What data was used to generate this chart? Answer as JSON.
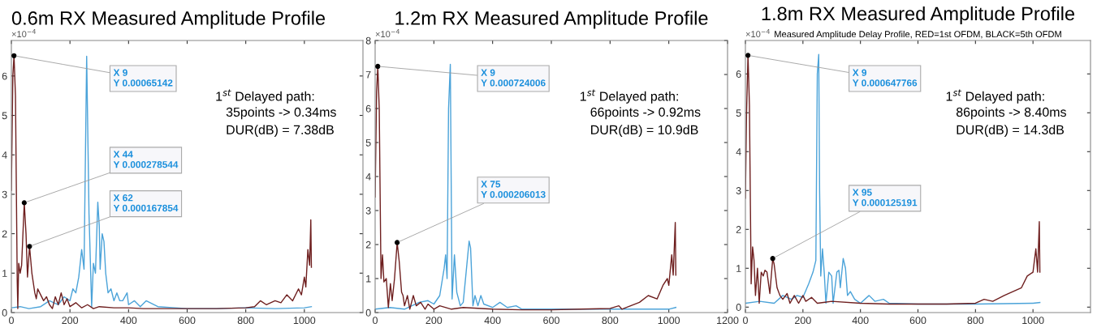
{
  "chart_data": [
    {
      "type": "line",
      "title": "0.6m RX Measured Amplitude Profile",
      "series": [
        {
          "color": "#4ba3d9",
          "x": [
            0,
            30,
            60,
            100,
            130,
            160,
            180,
            200,
            210,
            220,
            230,
            240,
            248,
            257,
            265,
            274,
            280,
            287,
            295,
            300,
            303,
            310,
            316,
            322,
            330,
            340,
            350,
            360,
            370,
            380,
            395,
            400,
            420,
            440,
            460,
            500,
            600,
            700,
            800,
            900,
            1000,
            1024
          ],
          "values": [
            0.12,
            0.15,
            0.1,
            0.15,
            0.3,
            0.2,
            0.4,
            0.3,
            0.6,
            0.5,
            0.9,
            1.6,
            1.1,
            6.5,
            2.5,
            0.15,
            1.25,
            1.0,
            2.8,
            2.2,
            1.1,
            2.0,
            1.8,
            1.0,
            0.5,
            0.6,
            0.3,
            0.5,
            0.3,
            0.3,
            0.5,
            0.2,
            0.3,
            0.15,
            0.3,
            0.15,
            0.1,
            0.1,
            0.12,
            0.1,
            0.12,
            0.15
          ]
        },
        {
          "color": "#6e1f1f",
          "x": [
            0,
            5,
            9,
            14,
            20,
            22,
            25,
            30,
            35,
            44,
            50,
            55,
            62,
            70,
            80,
            85,
            90,
            100,
            110,
            120,
            130,
            140,
            150,
            160,
            170,
            180,
            190,
            200,
            220,
            240,
            260,
            280,
            300,
            350,
            400,
            450,
            500,
            600,
            700,
            800,
            830,
            850,
            870,
            900,
            920,
            940,
            960,
            980,
            990,
            1000,
            1005,
            1012,
            1018,
            1022,
            1024
          ],
          "values": [
            3.1,
            6.0,
            6.5142,
            5.5,
            0.8,
            0.1,
            1.25,
            1.0,
            1.2,
            2.78544,
            2.0,
            0.9,
            1.67854,
            1.0,
            0.5,
            0.35,
            0.6,
            0.45,
            0.3,
            0.4,
            0.2,
            0.1,
            0.4,
            0.2,
            0.5,
            0.2,
            0.35,
            0.15,
            0.25,
            0.12,
            0.2,
            0.1,
            0.15,
            0.12,
            0.12,
            0.1,
            0.1,
            0.1,
            0.1,
            0.12,
            0.15,
            0.3,
            0.2,
            0.3,
            0.25,
            0.45,
            0.3,
            0.6,
            0.45,
            0.9,
            0.65,
            1.6,
            1.2,
            2.35,
            1.15
          ]
        }
      ],
      "xlim": [
        0,
        1200
      ],
      "xticks": [
        0,
        200,
        400,
        600,
        800,
        1000
      ],
      "ylim": [
        0,
        6.9
      ],
      "yticks": [
        0,
        1,
        2,
        3,
        4,
        5,
        6
      ],
      "marker": "none",
      "line_style": "solid",
      "annotations": [
        "×10$^{−4}$",
        "1$^{st}$ Delayed path:",
        "35points -> 0.34ms",
        "DUR(dB) = 7.38dB",
        {
          "text": "X 9\nY 0.00065142",
          "x": 9,
          "y": 6.5142
        },
        {
          "text": "X 44\nY 0.000278544",
          "x": 44,
          "y": 2.78544
        },
        {
          "text": "X 62\nY 0.000167854",
          "x": 62,
          "y": 1.67854
        }
      ]
    },
    {
      "type": "line",
      "title": "1.2m RX Measured Amplitude Profile",
      "series": [
        {
          "color": "#4ba3d9",
          "x": [
            0,
            50,
            100,
            150,
            180,
            200,
            220,
            235,
            240,
            245,
            250,
            256,
            262,
            270,
            278,
            290,
            300,
            310,
            320,
            325,
            333,
            340,
            350,
            360,
            370,
            400,
            425,
            450,
            480,
            500,
            600,
            800,
            1000,
            1024
          ],
          "values": [
            0.1,
            0.15,
            0.1,
            0.3,
            0.35,
            0.25,
            0.5,
            1.3,
            1.7,
            1.0,
            6.0,
            7.3,
            0.4,
            1.7,
            0.6,
            0.2,
            0.3,
            1.2,
            2.1,
            1.9,
            0.2,
            0.5,
            0.2,
            0.5,
            0.25,
            0.15,
            0.3,
            0.15,
            0.2,
            0.1,
            0.1,
            0.1,
            0.1,
            0.15
          ]
        },
        {
          "color": "#6e1f1f",
          "x": [
            0,
            5,
            9,
            14,
            20,
            25,
            30,
            38,
            45,
            52,
            58,
            66,
            75,
            82,
            90,
            95,
            100,
            110,
            118,
            130,
            140,
            155,
            170,
            180,
            200,
            220,
            260,
            300,
            400,
            500,
            600,
            700,
            800,
            830,
            840,
            870,
            900,
            930,
            960,
            980,
            995,
            1000,
            1010,
            1015,
            1022,
            1024
          ],
          "values": [
            3.4,
            6.5,
            7.24006,
            6.0,
            1.0,
            1.7,
            0.9,
            1.0,
            0.15,
            0.85,
            0.35,
            1.0,
            2.06013,
            1.5,
            0.6,
            0.5,
            0.2,
            0.5,
            0.1,
            0.5,
            0.2,
            0.3,
            0.1,
            0.25,
            0.1,
            0.2,
            0.1,
            0.15,
            0.1,
            0.08,
            0.08,
            0.1,
            0.12,
            0.2,
            0.1,
            0.2,
            0.3,
            0.5,
            0.4,
            0.8,
            1.0,
            0.8,
            1.7,
            1.1,
            2.65,
            1.1
          ]
        }
      ],
      "xlim": [
        0,
        1200
      ],
      "xticks": [
        0,
        200,
        400,
        600,
        800,
        1000,
        1200
      ],
      "ylim": [
        0,
        8
      ],
      "yticks": [
        0,
        1,
        2,
        3,
        4,
        5,
        6,
        7,
        8
      ],
      "marker": "none",
      "line_style": "solid",
      "annotations": [
        "×10$^{−4}$",
        "1$^{st}$ Delayed path:",
        "66points -> 0.92ms",
        "DUR(dB) = 10.9dB",
        {
          "text": "X 9\nY 0.000724006",
          "x": 9,
          "y": 7.24006
        },
        {
          "text": "X 75\nY 0.000206013",
          "x": 75,
          "y": 2.06013
        }
      ]
    },
    {
      "type": "line",
      "title": "1.8m RX Measured Amplitude Profile",
      "subtitle": "Measured Amplitude Delay Profile, RED=1st OFDM, BLACK=5th OFDM",
      "series": [
        {
          "color": "#4ba3d9",
          "x": [
            0,
            50,
            100,
            130,
            160,
            180,
            200,
            220,
            235,
            245,
            250,
            255,
            258,
            262,
            268,
            274,
            280,
            290,
            300,
            305,
            318,
            325,
            330,
            340,
            348,
            355,
            365,
            380,
            400,
            430,
            450,
            480,
            500,
            600,
            800,
            1000,
            1024
          ],
          "values": [
            0.1,
            0.15,
            0.1,
            0.3,
            0.2,
            0.3,
            0.25,
            0.6,
            0.9,
            1.2,
            6.0,
            6.5,
            3.0,
            0.8,
            1.5,
            0.9,
            0.1,
            0.9,
            0.8,
            0.1,
            0.9,
            0.95,
            0.5,
            1.25,
            1.0,
            0.3,
            0.4,
            0.2,
            0.1,
            0.3,
            0.15,
            0.2,
            0.1,
            0.08,
            0.08,
            0.1,
            0.12
          ]
        },
        {
          "color": "#6e1f1f",
          "x": [
            0,
            4,
            9,
            14,
            20,
            25,
            30,
            35,
            42,
            48,
            55,
            62,
            68,
            75,
            85,
            95,
            100,
            110,
            120,
            130,
            145,
            155,
            170,
            185,
            200,
            210,
            230,
            250,
            300,
            400,
            500,
            600,
            700,
            800,
            830,
            860,
            900,
            930,
            960,
            980,
            1000,
            1010,
            1016,
            1022,
            1024
          ],
          "values": [
            2.8,
            5.0,
            6.47766,
            5.2,
            0.6,
            1.55,
            1.2,
            0.3,
            1.0,
            0.1,
            0.9,
            0.8,
            0.95,
            0.9,
            0.35,
            1.25191,
            1.1,
            0.5,
            0.3,
            0.2,
            0.35,
            0.1,
            0.3,
            0.1,
            0.3,
            0.15,
            0.25,
            0.1,
            0.15,
            0.1,
            0.08,
            0.08,
            0.08,
            0.1,
            0.2,
            0.15,
            0.3,
            0.4,
            0.5,
            0.8,
            0.9,
            1.5,
            0.9,
            2.2,
            0.9
          ]
        }
      ],
      "xlim": [
        0,
        1200
      ],
      "xticks": [
        0,
        200,
        400,
        600,
        800,
        1000
      ],
      "ylim": [
        -0.14,
        6.86
      ],
      "yticks": [
        0,
        1,
        2,
        3,
        4,
        5,
        6
      ],
      "marker": "none",
      "line_style": "solid",
      "annotations": [
        "×10$^{−4}$",
        "1$^{st}$ Delayed path:",
        "86points -> 8.40ms",
        "DUR(dB) = 14.3dB",
        {
          "text": "X 9\nY 0.000647766",
          "x": 9,
          "y": 6.47766
        },
        {
          "text": "X 95\nY 0.000125191",
          "x": 95,
          "y": 1.25191
        }
      ]
    }
  ]
}
